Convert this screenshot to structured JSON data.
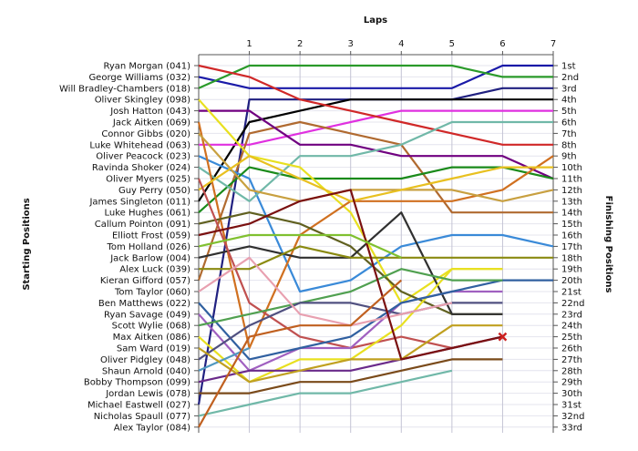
{
  "chart_data": {
    "type": "line",
    "title": "Laps",
    "ylabel_left": "Starting Positions",
    "ylabel_right": "Finishing Positions",
    "x": [
      0,
      1,
      2,
      3,
      4,
      5,
      6,
      7
    ],
    "x_tick_labels": [
      "1",
      "2",
      "3",
      "4",
      "5",
      "6",
      "7"
    ],
    "drivers": [
      "Ryan Morgan (041)",
      "George Williams (032)",
      "Will Bradley-Chambers (018)",
      "Oliver Skingley (098)",
      "Josh Hatton (043)",
      "Jack Aitken (069)",
      "Connor Gibbs (020)",
      "Luke Whitehead (063)",
      "Oliver Peacock (023)",
      "Ravinda Shoker (024)",
      "Oliver Myers (025)",
      "Guy Perry (050)",
      "James Singleton (011)",
      "Luke Hughes (061)",
      "Callum Pointon (091)",
      "Elliott Frost (059)",
      "Tom Holland (026)",
      "Jack Barlow (004)",
      "Alex Luck (039)",
      "Kieran Gifford (057)",
      "Tom Taylor (060)",
      "Ben Matthews (022)",
      "Ryan Savage (049)",
      "Scott Wylie (068)",
      "Max Aitken (086)",
      "Sam Ward (019)",
      "Oliver Pidgley (048)",
      "Shaun Arnold (040)",
      "Bobby Thompson (099)",
      "Jordan Lewis (078)",
      "Michael Eastwell (027)",
      "Nicholas Spaull (077)",
      "Alex Taylor (084)"
    ],
    "finishing_labels": [
      "1st",
      "2nd",
      "3rd",
      "4th",
      "5th",
      "6th",
      "7th",
      "8th",
      "9th",
      "10th",
      "11th",
      "12th",
      "13th",
      "14th",
      "15th",
      "16th",
      "17th",
      "18th",
      "19th",
      "20th",
      "21st",
      "22nd",
      "23rd",
      "24th",
      "25th",
      "26th",
      "27th",
      "28th",
      "29th",
      "30th",
      "31st",
      "32nd",
      "33rd"
    ],
    "marker": {
      "type": "retired",
      "symbol": "x",
      "lap": 6,
      "position": 25,
      "color": "#cc2020"
    },
    "series": [
      {
        "color": "#1a1aa8",
        "positions": [
          2,
          3,
          3,
          3,
          3,
          3,
          1,
          1
        ]
      },
      {
        "color": "#2a9a2a",
        "positions": [
          3,
          1,
          1,
          1,
          1,
          1,
          2,
          2
        ]
      },
      {
        "color": "#202080",
        "positions": [
          31,
          4,
          4,
          4,
          4,
          4,
          3,
          3
        ]
      },
      {
        "color": "#000000",
        "positions": [
          13,
          6,
          5,
          4,
          4,
          4,
          4,
          4
        ]
      },
      {
        "color": "#e030e0",
        "positions": [
          8,
          8,
          7,
          6,
          5,
          5,
          5,
          5
        ]
      },
      {
        "color": "#70b8a8",
        "positions": [
          32,
          31,
          30,
          30,
          29,
          28
        ]
      },
      {
        "color": "#b06a30",
        "positions": [
          20,
          7,
          6,
          7,
          8,
          14,
          14,
          14
        ]
      },
      {
        "color": "#d02828",
        "positions": [
          1,
          2,
          4,
          5,
          6,
          7,
          8,
          8
        ]
      },
      {
        "color": "#3a8ad8",
        "positions": [
          9,
          11,
          21,
          20,
          17,
          16,
          16,
          17
        ]
      },
      {
        "color": "#700080",
        "positions": [
          5,
          5,
          8,
          8,
          9,
          9,
          9,
          11
        ]
      },
      {
        "color": "#1a8a1a",
        "positions": [
          14,
          10,
          11,
          11,
          11,
          10,
          10,
          11
        ]
      },
      {
        "color": "#70b8a8",
        "positions": [
          10,
          13,
          9,
          9,
          8,
          6,
          6,
          6
        ]
      },
      {
        "color": "#e8e020",
        "positions": [
          4,
          9,
          10,
          14,
          22,
          19,
          19
        ]
      },
      {
        "color": "#d07020",
        "positions": [
          6,
          26,
          16,
          13,
          13,
          13,
          12,
          9
        ]
      },
      {
        "color": "#606020",
        "positions": [
          15,
          14,
          15,
          17,
          21,
          23,
          23
        ]
      },
      {
        "color": "#c8a040",
        "positions": [
          7,
          12,
          13,
          12,
          12,
          12,
          13,
          12
        ]
      },
      {
        "color": "#e8c020",
        "positions": [
          12,
          9,
          11,
          13,
          12,
          11,
          10,
          10
        ]
      },
      {
        "color": "#303030",
        "positions": [
          18,
          17,
          18,
          18,
          14,
          23,
          23
        ]
      },
      {
        "color": "#8a8a10",
        "positions": [
          19,
          19,
          17,
          18,
          18,
          18,
          18,
          18
        ]
      },
      {
        "color": "#c05050",
        "positions": [
          11,
          22,
          25,
          26,
          25,
          26,
          25
        ]
      },
      {
        "color": "#e8e020",
        "positions": [
          25,
          29,
          27,
          27,
          24,
          19,
          19
        ]
      },
      {
        "color": "#a060c0",
        "positions": [
          23,
          28,
          26,
          26,
          22,
          21,
          21
        ]
      },
      {
        "color": "#3060a0",
        "positions": [
          22,
          27,
          26,
          25,
          22,
          21,
          20,
          20
        ]
      },
      {
        "color": "#50a050",
        "positions": [
          24,
          23,
          22,
          21,
          19,
          20,
          20
        ]
      },
      {
        "color": "#505080",
        "positions": [
          27,
          24,
          22,
          22,
          23,
          22,
          22
        ]
      },
      {
        "color": "#e8a0b0",
        "positions": [
          21,
          18,
          23,
          24,
          23,
          22
        ]
      },
      {
        "color": "#5098c0",
        "positions": [
          28,
          26
        ]
      },
      {
        "color": "#6a2a8a",
        "positions": [
          29,
          28,
          28,
          28,
          27,
          26,
          25
        ]
      },
      {
        "color": "#7a4a1a",
        "positions": [
          30,
          30,
          29,
          29,
          28,
          27,
          27
        ]
      },
      {
        "color": "#c0a020",
        "positions": [
          26,
          29,
          28,
          27,
          27,
          24,
          24
        ]
      },
      {
        "color": "#7a1010",
        "positions": [
          16,
          15,
          13,
          12,
          27,
          26,
          25
        ]
      },
      {
        "color": "#80c030",
        "positions": [
          17,
          16,
          16,
          16,
          18
        ]
      },
      {
        "color": "#c06020",
        "positions": [
          33,
          25,
          24,
          24,
          20
        ]
      }
    ]
  }
}
